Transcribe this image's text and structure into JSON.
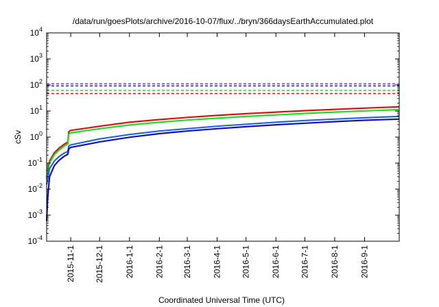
{
  "chart_data": {
    "type": "line",
    "title": "/data/run/goesPlots/archive/2016-10-07/flux/../bryn/366daysEarthAccumulated.plot",
    "xlabel": "Coordinated Universal Time (UTC)",
    "ylabel": "cSv",
    "yscale": "log",
    "ylim": [
      0.0001,
      10000
    ],
    "xlim": [
      "2015-10-07",
      "2016-10-07"
    ],
    "grid": false,
    "legend": "none",
    "y_ticks": [
      {
        "value": 0.0001,
        "base": "10",
        "exp": "-4"
      },
      {
        "value": 0.001,
        "base": "10",
        "exp": "-3"
      },
      {
        "value": 0.01,
        "base": "10",
        "exp": "-2"
      },
      {
        "value": 0.1,
        "base": "10",
        "exp": "-1"
      },
      {
        "value": 1,
        "base": "10",
        "exp": "0"
      },
      {
        "value": 10,
        "base": "10",
        "exp": "1"
      },
      {
        "value": 100,
        "base": "10",
        "exp": "2"
      },
      {
        "value": 1000,
        "base": "10",
        "exp": "3"
      },
      {
        "value": 10000,
        "base": "10",
        "exp": "4"
      }
    ],
    "x_ticks": [
      "2015-11-1",
      "2015-12-1",
      "2016-1-1",
      "2016-2-1",
      "2016-3-1",
      "2016-4-1",
      "2016-5-1",
      "2016-6-1",
      "2016-7-1",
      "2016-8-1",
      "2016-9-1"
    ],
    "thresholds": [
      {
        "color": "#7b2fd6",
        "y": 110
      },
      {
        "color": "#1a1ad6",
        "y": 92
      },
      {
        "color": "#22dd22",
        "y": 62
      },
      {
        "color": "#e01010",
        "y": 47
      }
    ],
    "series": [
      {
        "color": "#e01010",
        "points": [
          [
            "2015-10-07",
            0.03
          ],
          [
            "2015-10-10",
            0.12
          ],
          [
            "2015-10-15",
            0.25
          ],
          [
            "2015-10-20",
            0.38
          ],
          [
            "2015-10-25",
            0.52
          ],
          [
            "2015-10-29",
            0.65
          ],
          [
            "2015-10-30",
            1.6
          ],
          [
            "2015-11-01",
            1.8
          ],
          [
            "2015-12-01",
            2.6
          ],
          [
            "2016-01-01",
            3.7
          ],
          [
            "2016-02-01",
            4.7
          ],
          [
            "2016-03-01",
            5.7
          ],
          [
            "2016-04-01",
            6.8
          ],
          [
            "2016-05-01",
            7.9
          ],
          [
            "2016-06-01",
            9.1
          ],
          [
            "2016-07-01",
            10.3
          ],
          [
            "2016-08-01",
            11.6
          ],
          [
            "2016-09-01",
            12.9
          ],
          [
            "2016-10-07",
            14.5
          ]
        ]
      },
      {
        "color": "#22dd22",
        "points": [
          [
            "2015-10-07",
            0.025
          ],
          [
            "2015-10-10",
            0.1
          ],
          [
            "2015-10-15",
            0.21
          ],
          [
            "2015-10-20",
            0.32
          ],
          [
            "2015-10-25",
            0.44
          ],
          [
            "2015-10-29",
            0.55
          ],
          [
            "2015-10-30",
            1.3
          ],
          [
            "2015-11-01",
            1.45
          ],
          [
            "2015-12-01",
            2.1
          ],
          [
            "2016-01-01",
            2.9
          ],
          [
            "2016-02-01",
            3.7
          ],
          [
            "2016-03-01",
            4.5
          ],
          [
            "2016-04-01",
            5.3
          ],
          [
            "2016-05-01",
            6.2
          ],
          [
            "2016-06-01",
            7.1
          ],
          [
            "2016-07-01",
            8.1
          ],
          [
            "2016-08-01",
            9.1
          ],
          [
            "2016-09-01",
            10.1
          ],
          [
            "2016-10-07",
            11.3
          ]
        ]
      },
      {
        "color": "#2266dd",
        "points": [
          [
            "2015-10-07",
            0.015
          ],
          [
            "2015-10-10",
            0.06
          ],
          [
            "2015-10-15",
            0.12
          ],
          [
            "2015-10-20",
            0.18
          ],
          [
            "2015-10-25",
            0.24
          ],
          [
            "2015-10-29",
            0.28
          ],
          [
            "2015-10-30",
            0.45
          ],
          [
            "2015-11-01",
            0.5
          ],
          [
            "2015-12-01",
            0.85
          ],
          [
            "2016-01-01",
            1.25
          ],
          [
            "2016-02-01",
            1.7
          ],
          [
            "2016-03-01",
            2.1
          ],
          [
            "2016-04-01",
            2.6
          ],
          [
            "2016-05-01",
            3.1
          ],
          [
            "2016-06-01",
            3.7
          ],
          [
            "2016-07-01",
            4.3
          ],
          [
            "2016-08-01",
            4.9
          ],
          [
            "2016-09-01",
            5.5
          ],
          [
            "2016-10-07",
            6.2
          ]
        ]
      },
      {
        "color": "#1010c8",
        "points": [
          [
            "2015-10-07",
            0.0006
          ],
          [
            "2015-10-08",
            0.004
          ],
          [
            "2015-10-10",
            0.03
          ],
          [
            "2015-10-15",
            0.08
          ],
          [
            "2015-10-20",
            0.13
          ],
          [
            "2015-10-25",
            0.18
          ],
          [
            "2015-10-29",
            0.22
          ],
          [
            "2015-10-30",
            0.35
          ],
          [
            "2015-11-01",
            0.4
          ],
          [
            "2015-12-01",
            0.65
          ],
          [
            "2016-01-01",
            0.98
          ],
          [
            "2016-02-01",
            1.35
          ],
          [
            "2016-03-01",
            1.7
          ],
          [
            "2016-04-01",
            2.1
          ],
          [
            "2016-05-01",
            2.5
          ],
          [
            "2016-06-01",
            2.95
          ],
          [
            "2016-07-01",
            3.4
          ],
          [
            "2016-08-01",
            3.9
          ],
          [
            "2016-09-01",
            4.4
          ],
          [
            "2016-10-07",
            4.9
          ]
        ]
      }
    ]
  }
}
